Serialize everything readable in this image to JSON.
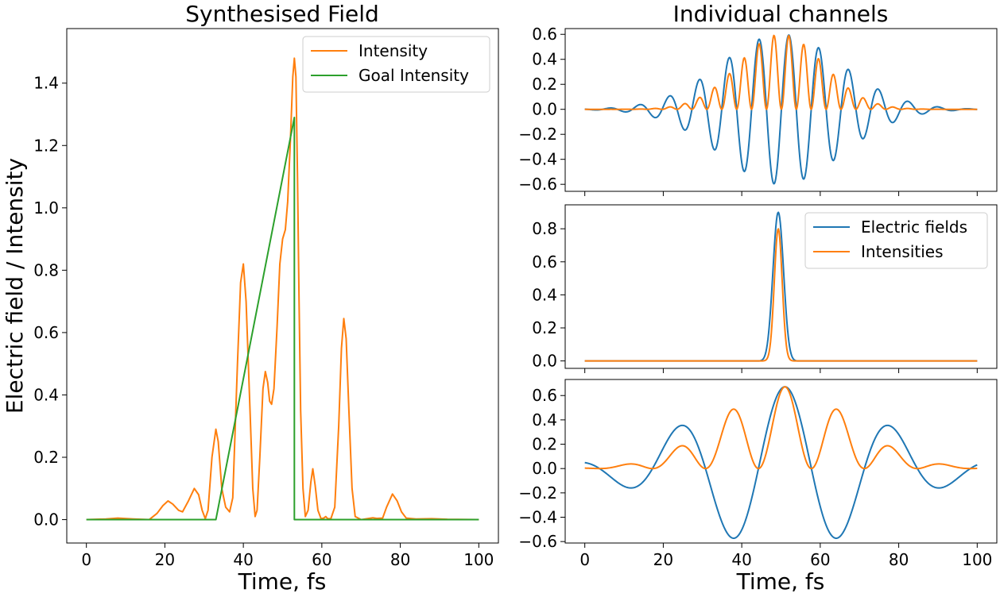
{
  "chart_data": [
    {
      "type": "line",
      "title": "Synthesised Field",
      "xlabel": "Time, fs",
      "ylabel": "Electric field / Intensity",
      "xlim": [
        -5,
        105
      ],
      "ylim": [
        -0.075,
        1.575
      ],
      "xticks": [
        "0",
        "20",
        "40",
        "60",
        "80",
        "100"
      ],
      "yticks": [
        "0.0",
        "0.2",
        "0.4",
        "0.6",
        "0.8",
        "1.0",
        "1.2",
        "1.4"
      ],
      "legend": "top-right",
      "series": [
        {
          "name": "Intensity",
          "color": "#ff7f0e",
          "points": [
            [
              0,
              0
            ],
            [
              5,
              0.002
            ],
            [
              8,
              0.005
            ],
            [
              12,
              0.002
            ],
            [
              16,
              0
            ],
            [
              18,
              0.02
            ],
            [
              19.5,
              0.045
            ],
            [
              20.8,
              0.06
            ],
            [
              22,
              0.05
            ],
            [
              23.5,
              0.03
            ],
            [
              24.5,
              0.025
            ],
            [
              26,
              0.06
            ],
            [
              27.5,
              0.1
            ],
            [
              28.6,
              0.08
            ],
            [
              29.5,
              0.03
            ],
            [
              30.3,
              0.003
            ],
            [
              31,
              0.03
            ],
            [
              32,
              0.2
            ],
            [
              33,
              0.29
            ],
            [
              33.6,
              0.25
            ],
            [
              34.5,
              0.1
            ],
            [
              35.5,
              0.04
            ],
            [
              36.5,
              0.025
            ],
            [
              37.3,
              0.07
            ],
            [
              38.5,
              0.5
            ],
            [
              39.3,
              0.76
            ],
            [
              40,
              0.82
            ],
            [
              40.7,
              0.7
            ],
            [
              41.7,
              0.35
            ],
            [
              42.4,
              0.1
            ],
            [
              43,
              0.01
            ],
            [
              43.5,
              0.03
            ],
            [
              44.2,
              0.2
            ],
            [
              45,
              0.42
            ],
            [
              45.6,
              0.475
            ],
            [
              46.2,
              0.44
            ],
            [
              46.7,
              0.38
            ],
            [
              47.2,
              0.37
            ],
            [
              47.8,
              0.42
            ],
            [
              48.6,
              0.62
            ],
            [
              49.3,
              0.82
            ],
            [
              50,
              0.9
            ],
            [
              50.7,
              0.93
            ],
            [
              51.3,
              1.02
            ],
            [
              52,
              1.22
            ],
            [
              52.6,
              1.42
            ],
            [
              53,
              1.48
            ],
            [
              53.4,
              1.42
            ],
            [
              53.8,
              1.1
            ],
            [
              54.2,
              0.7
            ],
            [
              54.6,
              0.35
            ],
            [
              55.2,
              0.1
            ],
            [
              55.8,
              0.01
            ],
            [
              56.5,
              0.03
            ],
            [
              57.2,
              0.12
            ],
            [
              57.7,
              0.163
            ],
            [
              58.3,
              0.11
            ],
            [
              59,
              0.03
            ],
            [
              59.8,
              0.003
            ],
            [
              60.5,
              0.005
            ],
            [
              61,
              0.01
            ],
            [
              61.5,
              0.003
            ],
            [
              62.3,
              0.003
            ],
            [
              63.3,
              0.04
            ],
            [
              64.3,
              0.3
            ],
            [
              65,
              0.55
            ],
            [
              65.6,
              0.645
            ],
            [
              66.2,
              0.58
            ],
            [
              66.9,
              0.35
            ],
            [
              67.7,
              0.1
            ],
            [
              68.5,
              0.01
            ],
            [
              70,
              0
            ],
            [
              72,
              0.004
            ],
            [
              73,
              0.006
            ],
            [
              74,
              0.004
            ],
            [
              75.5,
              0.005
            ],
            [
              76.5,
              0.04
            ],
            [
              78,
              0.082
            ],
            [
              79.2,
              0.06
            ],
            [
              80.3,
              0.025
            ],
            [
              81.5,
              0.005
            ],
            [
              84,
              0.002
            ],
            [
              88,
              0.003
            ],
            [
              92,
              0.001
            ],
            [
              100,
              0
            ]
          ]
        },
        {
          "name": "Goal Intensity",
          "color": "#2ca02c",
          "points": [
            [
              0,
              0
            ],
            [
              33,
              0
            ],
            [
              53,
              1.29
            ],
            [
              53,
              0
            ],
            [
              100,
              0
            ]
          ]
        }
      ]
    },
    {
      "type": "line",
      "title": "Individual channels",
      "xlabel": "",
      "ylabel": "",
      "xlim": [
        -5,
        105
      ],
      "ylim": [
        -0.656,
        0.646
      ],
      "xticks": [],
      "yticks": [
        "−0.6",
        "−0.4",
        "−0.2",
        "0.0",
        "0.2",
        "0.4",
        "0.6"
      ],
      "series": [
        {
          "color": "#1f77b4",
          "generator": {
            "kind": "gauss_cos",
            "amp": 0.6,
            "center": 50,
            "sigma": 15.3,
            "period": 7.6,
            "phase": 52
          }
        },
        {
          "color": "#ff7f0e",
          "generator": {
            "kind": "gauss_cos_sq",
            "amp": 0.6,
            "center": 50,
            "sigma": 15.3,
            "period": 7.6,
            "phase": 52
          }
        }
      ]
    },
    {
      "type": "line",
      "xlabel": "",
      "ylabel": "",
      "xlim": [
        -5,
        105
      ],
      "ylim": [
        -0.045,
        0.945
      ],
      "xticks": [],
      "yticks": [
        "0.0",
        "0.2",
        "0.4",
        "0.6",
        "0.8"
      ],
      "legend": "top-right",
      "series": [
        {
          "name": "Electric fields",
          "color": "#1f77b4",
          "generator": {
            "kind": "gauss_cos",
            "amp": 0.9,
            "center": 49.3,
            "sigma": 1.5,
            "period": 20,
            "phase": 49.3
          }
        },
        {
          "name": "Intensities",
          "color": "#ff7f0e",
          "generator": {
            "kind": "gauss_sq",
            "amp": 0.8,
            "center": 49.3,
            "sigma": 1.0
          }
        }
      ]
    },
    {
      "type": "line",
      "xlabel": "Time, fs",
      "ylabel": "",
      "xlim": [
        -5,
        105
      ],
      "ylim": [
        -0.612,
        0.732
      ],
      "xticks": [
        "0",
        "20",
        "40",
        "60",
        "80",
        "100"
      ],
      "yticks": [
        "−0.6",
        "−0.4",
        "−0.2",
        "0.0",
        "0.2",
        "0.4",
        "0.6"
      ],
      "series": [
        {
          "color": "#1f77b4",
          "generator": {
            "kind": "gauss_cos",
            "amp": 0.672,
            "center": 51,
            "sigma": 23.5,
            "period": 27,
            "phase": 51
          }
        },
        {
          "color": "#ff7f0e",
          "generator": {
            "kind": "gauss_cos_sq",
            "amp": 0.672,
            "center": 51,
            "sigma": 23.5,
            "period": 27,
            "phase": 51
          }
        }
      ]
    }
  ]
}
